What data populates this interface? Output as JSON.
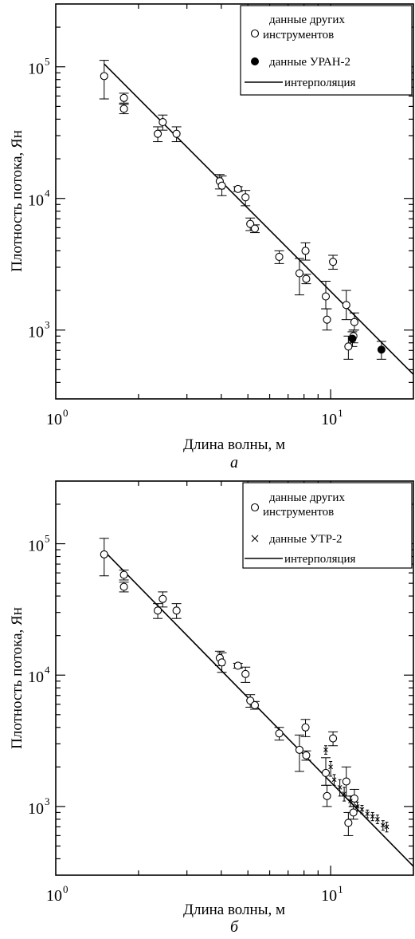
{
  "chart_data": [
    {
      "type": "scatter",
      "panel_label": "а",
      "xlabel": "Длина волны, м",
      "ylabel": "Плотность потока, Ян",
      "x_scale": "log",
      "y_scale": "log",
      "xlim": [
        1,
        20
      ],
      "ylim": [
        300,
        300000
      ],
      "x_ticks": [
        {
          "base": "10",
          "exp": "0",
          "value": 1
        },
        {
          "base": "10",
          "exp": "1",
          "value": 10
        }
      ],
      "y_ticks": [
        {
          "base": "10",
          "exp": "3",
          "value": 1000
        },
        {
          "base": "10",
          "exp": "4",
          "value": 10000
        },
        {
          "base": "10",
          "exp": "5",
          "value": 100000
        }
      ],
      "legend": {
        "position": "top-right",
        "entries": [
          {
            "label_lines": [
              "данные других",
              "инструментов"
            ],
            "marker": "open-circle"
          },
          {
            "label_lines": [
              "данные УРАН-2"
            ],
            "marker": "filled-circle"
          },
          {
            "label_lines": [
              "интерполяция"
            ],
            "marker": "line"
          }
        ]
      },
      "series": [
        {
          "marker": "open-circle",
          "points": [
            {
              "x": 1.5,
              "y": 85000,
              "ylo": 57000,
              "yhi": 112000
            },
            {
              "x": 1.77,
              "y": 58000,
              "ylo": 53000,
              "yhi": 63000
            },
            {
              "x": 1.77,
              "y": 48000,
              "ylo": 44000,
              "yhi": 52000
            },
            {
              "x": 2.35,
              "y": 31000,
              "ylo": 27000,
              "yhi": 35000
            },
            {
              "x": 2.45,
              "y": 38000,
              "ylo": 33000,
              "yhi": 43000
            },
            {
              "x": 2.75,
              "y": 31000,
              "ylo": 27000,
              "yhi": 35000
            },
            {
              "x": 3.95,
              "y": 13500,
              "ylo": 11800,
              "yhi": 15200
            },
            {
              "x": 4.02,
              "y": 12500,
              "ylo": 10500,
              "yhi": 14800
            },
            {
              "x": 4.6,
              "y": 11800,
              "ylo": 11300,
              "yhi": 12300
            },
            {
              "x": 4.9,
              "y": 10200,
              "ylo": 8800,
              "yhi": 11500
            },
            {
              "x": 5.1,
              "y": 6400,
              "ylo": 5700,
              "yhi": 7100
            },
            {
              "x": 5.3,
              "y": 5900,
              "ylo": 5500,
              "yhi": 6300
            },
            {
              "x": 6.5,
              "y": 3600,
              "ylo": 3200,
              "yhi": 4000
            },
            {
              "x": 7.7,
              "y": 2700,
              "ylo": 1850,
              "yhi": 3500
            },
            {
              "x": 8.1,
              "y": 4000,
              "ylo": 3400,
              "yhi": 4600
            },
            {
              "x": 8.15,
              "y": 2450,
              "ylo": 2250,
              "yhi": 2650
            },
            {
              "x": 9.6,
              "y": 1800,
              "ylo": 1450,
              "yhi": 2350
            },
            {
              "x": 9.7,
              "y": 1200,
              "ylo": 1000,
              "yhi": 1450
            },
            {
              "x": 10.2,
              "y": 3300,
              "ylo": 2900,
              "yhi": 3700
            },
            {
              "x": 11.4,
              "y": 1550,
              "ylo": 1200,
              "yhi": 2000
            },
            {
              "x": 11.6,
              "y": 750,
              "ylo": 600,
              "yhi": 900
            },
            {
              "x": 12.2,
              "y": 1150,
              "ylo": 1000,
              "yhi": 1350
            },
            {
              "x": 12.1,
              "y": 900,
              "ylo": 800,
              "yhi": 1000
            }
          ]
        },
        {
          "name": "данные УРАН-2",
          "marker": "filled-circle",
          "points": [
            {
              "x": 12.0,
              "y": 860,
              "ylo": 750,
              "yhi": 970
            },
            {
              "x": 15.3,
              "y": 710,
              "ylo": 600,
              "yhi": 820
            }
          ]
        },
        {
          "name": "интерполяция",
          "marker": "line",
          "points": [
            {
              "x": 1.5,
              "y": 105000
            },
            {
              "x": 20,
              "y": 460
            }
          ]
        }
      ]
    },
    {
      "type": "scatter",
      "panel_label": "б",
      "xlabel": "Длина волны, м",
      "ylabel": "Плотность потока, Ян",
      "x_scale": "log",
      "y_scale": "log",
      "xlim": [
        1,
        20
      ],
      "ylim": [
        300,
        300000
      ],
      "x_ticks": [
        {
          "base": "10",
          "exp": "0",
          "value": 1
        },
        {
          "base": "10",
          "exp": "1",
          "value": 10
        }
      ],
      "y_ticks": [
        {
          "base": "10",
          "exp": "3",
          "value": 1000
        },
        {
          "base": "10",
          "exp": "4",
          "value": 10000
        },
        {
          "base": "10",
          "exp": "5",
          "value": 100000
        }
      ],
      "legend": {
        "position": "top-right",
        "entries": [
          {
            "label_lines": [
              "данные других",
              "инструментов"
            ],
            "marker": "open-circle"
          },
          {
            "label_lines": [
              "данные УТР-2"
            ],
            "marker": "cross"
          },
          {
            "label_lines": [
              "интерполяция"
            ],
            "marker": "line"
          }
        ]
      },
      "series": [
        {
          "marker": "open-circle",
          "points": [
            {
              "x": 1.5,
              "y": 83000,
              "ylo": 57000,
              "yhi": 110000
            },
            {
              "x": 1.77,
              "y": 58000,
              "ylo": 53000,
              "yhi": 63000
            },
            {
              "x": 1.77,
              "y": 47000,
              "ylo": 43000,
              "yhi": 51000
            },
            {
              "x": 2.35,
              "y": 31000,
              "ylo": 27000,
              "yhi": 35000
            },
            {
              "x": 2.45,
              "y": 38000,
              "ylo": 33000,
              "yhi": 43000
            },
            {
              "x": 2.75,
              "y": 31000,
              "ylo": 27000,
              "yhi": 35000
            },
            {
              "x": 3.95,
              "y": 13500,
              "ylo": 11800,
              "yhi": 15200
            },
            {
              "x": 4.02,
              "y": 12500,
              "ylo": 10500,
              "yhi": 14800
            },
            {
              "x": 4.6,
              "y": 11800,
              "ylo": 11300,
              "yhi": 12300
            },
            {
              "x": 4.9,
              "y": 10200,
              "ylo": 8800,
              "yhi": 11500
            },
            {
              "x": 5.1,
              "y": 6400,
              "ylo": 5700,
              "yhi": 7100
            },
            {
              "x": 5.3,
              "y": 5900,
              "ylo": 5500,
              "yhi": 6300
            },
            {
              "x": 6.5,
              "y": 3600,
              "ylo": 3200,
              "yhi": 4000
            },
            {
              "x": 7.7,
              "y": 2700,
              "ylo": 1850,
              "yhi": 3500
            },
            {
              "x": 8.1,
              "y": 4000,
              "ylo": 3400,
              "yhi": 4600
            },
            {
              "x": 8.15,
              "y": 2450,
              "ylo": 2250,
              "yhi": 2650
            },
            {
              "x": 9.6,
              "y": 1800,
              "ylo": 1450,
              "yhi": 2350
            },
            {
              "x": 9.7,
              "y": 1200,
              "ylo": 1000,
              "yhi": 1450
            },
            {
              "x": 10.2,
              "y": 3300,
              "ylo": 2900,
              "yhi": 3700
            },
            {
              "x": 11.4,
              "y": 1550,
              "ylo": 1200,
              "yhi": 2000
            },
            {
              "x": 11.6,
              "y": 750,
              "ylo": 600,
              "yhi": 900
            },
            {
              "x": 12.2,
              "y": 1150,
              "ylo": 1000,
              "yhi": 1350
            },
            {
              "x": 12.1,
              "y": 900,
              "ylo": 800,
              "yhi": 1000
            }
          ]
        },
        {
          "name": "данные УТР-2",
          "marker": "cross",
          "points": [
            {
              "x": 9.6,
              "y": 2700,
              "ylo": 2500,
              "yhi": 2900
            },
            {
              "x": 10.0,
              "y": 2000,
              "ylo": 1700,
              "yhi": 2200
            },
            {
              "x": 10.3,
              "y": 1600,
              "ylo": 1450,
              "yhi": 1750
            },
            {
              "x": 10.8,
              "y": 1400,
              "ylo": 1200,
              "yhi": 1600
            },
            {
              "x": 11.2,
              "y": 1250,
              "ylo": 1100,
              "yhi": 1400
            },
            {
              "x": 11.8,
              "y": 1100,
              "ylo": 1000,
              "yhi": 1200
            },
            {
              "x": 12.5,
              "y": 1000,
              "ylo": 920,
              "yhi": 1080
            },
            {
              "x": 13.0,
              "y": 950,
              "ylo": 880,
              "yhi": 1020
            },
            {
              "x": 13.6,
              "y": 880,
              "ylo": 820,
              "yhi": 940
            },
            {
              "x": 14.2,
              "y": 840,
              "ylo": 780,
              "yhi": 900
            },
            {
              "x": 14.8,
              "y": 800,
              "ylo": 740,
              "yhi": 860
            },
            {
              "x": 15.5,
              "y": 720,
              "ylo": 660,
              "yhi": 780
            },
            {
              "x": 16.0,
              "y": 700,
              "ylo": 640,
              "yhi": 760
            }
          ]
        },
        {
          "name": "интерполяция",
          "marker": "line",
          "points": [
            {
              "x": 1.5,
              "y": 88000
            },
            {
              "x": 20,
              "y": 350
            }
          ]
        }
      ]
    }
  ]
}
